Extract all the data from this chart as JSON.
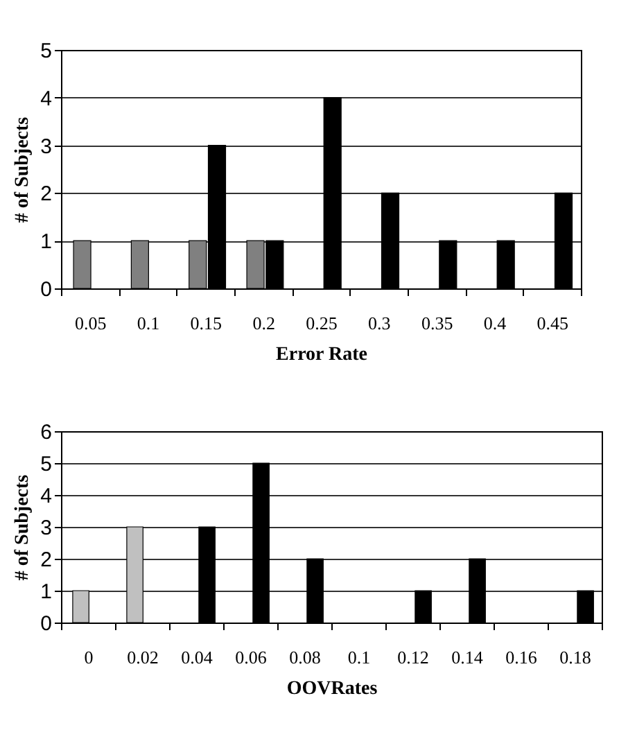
{
  "chart_data": [
    {
      "type": "bar",
      "xlabel": "Error Rate",
      "ylabel": "# of Subjects",
      "categories": [
        "0.05",
        "0.1",
        "0.15",
        "0.2",
        "0.25",
        "0.3",
        "0.35",
        "0.4",
        "0.45"
      ],
      "series": [
        {
          "color": "#808080",
          "values": [
            1,
            1,
            1,
            1,
            null,
            null,
            null,
            null,
            null
          ]
        },
        {
          "color": "#000000",
          "values": [
            null,
            null,
            3,
            1,
            4,
            2,
            1,
            1,
            2
          ]
        }
      ],
      "ylim": [
        0,
        5
      ],
      "yticks": [
        0,
        1,
        2,
        3,
        4,
        5
      ],
      "grid": "y",
      "legend": false
    },
    {
      "type": "bar",
      "xlabel": "OOVRates",
      "ylabel": "# of Subjects",
      "categories": [
        "0",
        "0.02",
        "0.04",
        "0.06",
        "0.08",
        "0.1",
        "0.12",
        "0.14",
        "0.16",
        "0.18"
      ],
      "series": [
        {
          "color": "#c0c0c0",
          "values": [
            1,
            3,
            null,
            null,
            null,
            null,
            null,
            null,
            null,
            null
          ]
        },
        {
          "color": "#000000",
          "values": [
            null,
            null,
            3,
            5,
            2,
            null,
            1,
            2,
            null,
            1
          ]
        }
      ],
      "ylim": [
        0,
        6
      ],
      "yticks": [
        0,
        1,
        2,
        3,
        4,
        5,
        6
      ],
      "grid": "y",
      "legend": false
    }
  ]
}
